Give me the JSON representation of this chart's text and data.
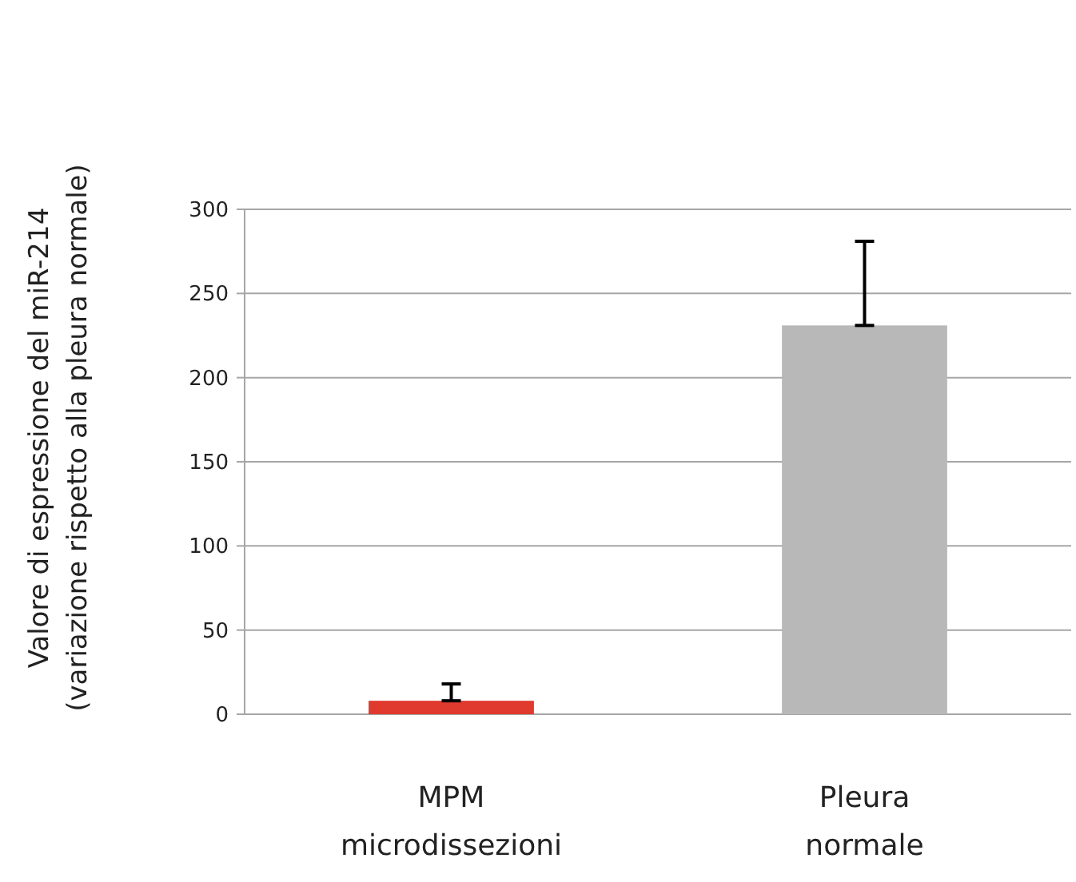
{
  "chart_data": {
    "type": "bar",
    "ylabel": "Valore di espressione del miR-214\n(variazione rispetto alla pleura normale)",
    "categories": [
      "MPM\nmicrodissezioni",
      "Pleura\nnormale"
    ],
    "values": [
      8,
      231
    ],
    "colors": [
      "#e03a2e",
      "#b8b8b8"
    ],
    "errors": [
      [
        8,
        18
      ],
      [
        231,
        281
      ]
    ],
    "ylim": [
      0,
      300
    ],
    "yticks": [
      0,
      50,
      100,
      150,
      200,
      250,
      300
    ],
    "grid": "y"
  }
}
